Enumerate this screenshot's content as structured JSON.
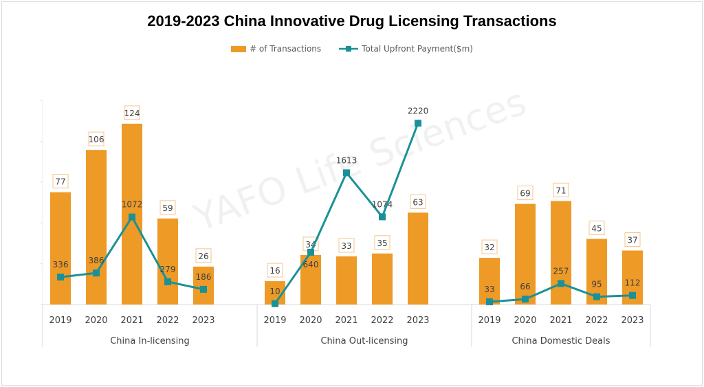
{
  "chart_data": {
    "type": "bar+line",
    "title": "2019-2023 China Innovative Drug Licensing Transactions",
    "groups": [
      {
        "name": "China In-licensing",
        "categories": [
          "2019",
          "2020",
          "2021",
          "2022",
          "2023"
        ],
        "transactions": [
          77,
          106,
          124,
          59,
          26
        ],
        "upfront": [
          336,
          386,
          1072,
          279,
          186
        ]
      },
      {
        "name": "China Out-licensing",
        "categories": [
          "2019",
          "2020",
          "2021",
          "2022",
          "2023"
        ],
        "transactions": [
          16,
          34,
          33,
          35,
          63
        ],
        "upfront": [
          10,
          640,
          1613,
          1074,
          2220
        ]
      },
      {
        "name": "China Domestic Deals",
        "categories": [
          "2019",
          "2020",
          "2021",
          "2022",
          "2023"
        ],
        "transactions": [
          32,
          69,
          71,
          45,
          37
        ],
        "upfront": [
          33,
          66,
          257,
          95,
          112
        ]
      }
    ],
    "series": [
      {
        "name": "# of Transactions",
        "type": "bar",
        "axis": "left",
        "color": "#ED9A27"
      },
      {
        "name": "Total Upfront Payment($m)",
        "type": "line",
        "axis": "secondary",
        "color": "#1A9197"
      }
    ],
    "ylim_bar": [
      0,
      140
    ],
    "ylim_line": [
      0,
      2500
    ],
    "legend": "top",
    "grid": false,
    "watermark": "YAFO Life Sciences"
  }
}
